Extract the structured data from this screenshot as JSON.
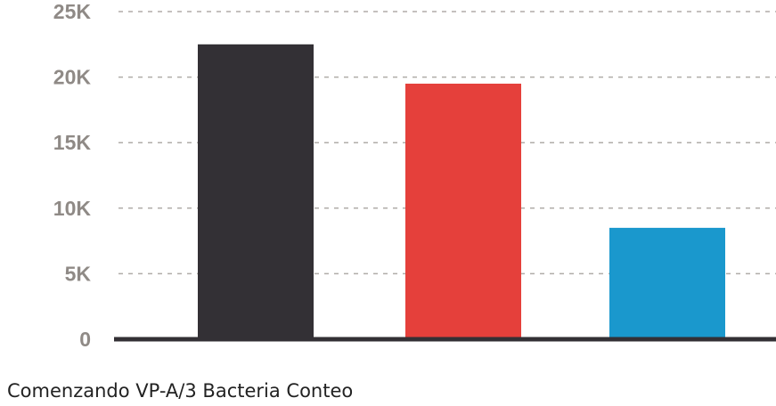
{
  "chart_data": {
    "type": "bar",
    "caption": "Comenzando VP-A/3 Bacteria Conteo",
    "title": "",
    "xlabel": "",
    "ylabel": "",
    "ylim": [
      0,
      25000
    ],
    "yticks": [
      0,
      5000,
      10000,
      15000,
      20000,
      25000
    ],
    "ytick_labels": [
      "0",
      "5K",
      "10K",
      "15K",
      "20K",
      "25K"
    ],
    "grid": true,
    "legend": "none",
    "bars": [
      {
        "value": 22500,
        "color": "#333035"
      },
      {
        "value": 19500,
        "color": "#e5403b"
      },
      {
        "value": 8500,
        "color": "#1a98cd"
      }
    ]
  }
}
